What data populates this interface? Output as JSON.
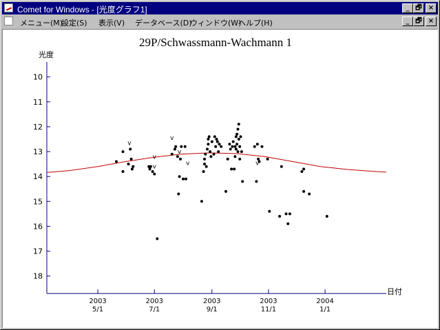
{
  "window": {
    "title": "Comet for Windows - [光度グラフ1]",
    "buttons": [
      "_",
      "🗗",
      "×"
    ],
    "mdi_buttons": [
      "_",
      "🗗",
      "×"
    ]
  },
  "menu": {
    "items": [
      "メニュー(M)",
      "設定(S)",
      "表示(V)",
      "データベース(D)",
      "ウィンドウ(W)",
      "ヘルプ(H)"
    ]
  },
  "chart_data": {
    "type": "scatter",
    "title": "29P/Schwassmann-Wachmann 1",
    "ylabel": "光度",
    "xlabel": "日付",
    "ylim": [
      9.4,
      18.7
    ],
    "y_inverted": true,
    "yticks": [
      10,
      11,
      12,
      13,
      14,
      15,
      16,
      17,
      18
    ],
    "x_domain_days": [
      -55,
      311
    ],
    "x_axis_note": "days from 2003-05-01",
    "xticks": [
      {
        "day": 0,
        "year": "2003",
        "label": "5/1"
      },
      {
        "day": 61,
        "year": "2003",
        "label": "7/1"
      },
      {
        "day": 123,
        "year": "2003",
        "label": "9/1"
      },
      {
        "day": 184,
        "year": "2003",
        "label": "11/1"
      },
      {
        "day": 245,
        "year": "2004",
        "label": "1/1"
      }
    ],
    "curve": {
      "color": "#c00000",
      "points": [
        [
          -55,
          13.84
        ],
        [
          -30,
          13.76
        ],
        [
          0,
          13.6
        ],
        [
          30,
          13.4
        ],
        [
          60,
          13.23
        ],
        [
          90,
          13.1
        ],
        [
          120,
          13.05
        ],
        [
          150,
          13.08
        ],
        [
          180,
          13.2
        ],
        [
          210,
          13.4
        ],
        [
          240,
          13.6
        ],
        [
          270,
          13.72
        ],
        [
          300,
          13.8
        ],
        [
          311,
          13.82
        ]
      ]
    },
    "points": [
      [
        20,
        13.4
      ],
      [
        27,
        13.0
      ],
      [
        27,
        13.8
      ],
      [
        33,
        13.5
      ],
      [
        35,
        12.9
      ],
      [
        36,
        13.3
      ],
      [
        37,
        13.7
      ],
      [
        38,
        13.6
      ],
      [
        55,
        13.6
      ],
      [
        56,
        13.7
      ],
      [
        57,
        13.6
      ],
      [
        59,
        13.8
      ],
      [
        61,
        13.9
      ],
      [
        64,
        16.5
      ],
      [
        80,
        13.1
      ],
      [
        83,
        12.9
      ],
      [
        84,
        12.8
      ],
      [
        86,
        13.2
      ],
      [
        87,
        14.7
      ],
      [
        88,
        14.0
      ],
      [
        89,
        13.3
      ],
      [
        90,
        12.8
      ],
      [
        92,
        14.1
      ],
      [
        94,
        12.8
      ],
      [
        95,
        14.1
      ],
      [
        112,
        15.0
      ],
      [
        114,
        13.8
      ],
      [
        115,
        13.5
      ],
      [
        115,
        13.3
      ],
      [
        116,
        13.1
      ],
      [
        117,
        13.6
      ],
      [
        118,
        12.9
      ],
      [
        119,
        12.5
      ],
      [
        119,
        12.7
      ],
      [
        120,
        12.4
      ],
      [
        121,
        13.0
      ],
      [
        122,
        13.2
      ],
      [
        123,
        12.6
      ],
      [
        125,
        13.1
      ],
      [
        126,
        12.4
      ],
      [
        127,
        12.8
      ],
      [
        128,
        12.5
      ],
      [
        129,
        12.6
      ],
      [
        130,
        13.0
      ],
      [
        131,
        12.7
      ],
      [
        133,
        12.8
      ],
      [
        138,
        14.6
      ],
      [
        140,
        13.3
      ],
      [
        142,
        12.7
      ],
      [
        143,
        12.9
      ],
      [
        144,
        13.7
      ],
      [
        145,
        12.8
      ],
      [
        146,
        12.6
      ],
      [
        147,
        13.7
      ],
      [
        148,
        13.2
      ],
      [
        148,
        12.8
      ],
      [
        149,
        12.4
      ],
      [
        149,
        12.9
      ],
      [
        150,
        12.3
      ],
      [
        150,
        12.7
      ],
      [
        151,
        12.1
      ],
      [
        151,
        13.0
      ],
      [
        152,
        11.9
      ],
      [
        152,
        12.5
      ],
      [
        153,
        12.8
      ],
      [
        153,
        13.3
      ],
      [
        154,
        12.4
      ],
      [
        155,
        13.0
      ],
      [
        156,
        14.2
      ],
      [
        169,
        12.8
      ],
      [
        171,
        14.2
      ],
      [
        172,
        12.7
      ],
      [
        173,
        13.3
      ],
      [
        174,
        13.4
      ],
      [
        177,
        12.8
      ],
      [
        183,
        13.3
      ],
      [
        185,
        15.4
      ],
      [
        196,
        15.6
      ],
      [
        198,
        13.6
      ],
      [
        203,
        15.5
      ],
      [
        205,
        15.9
      ],
      [
        207,
        15.5
      ],
      [
        220,
        13.8
      ],
      [
        222,
        14.6
      ],
      [
        222,
        13.7
      ],
      [
        228,
        14.7
      ],
      [
        247,
        15.6
      ]
    ],
    "upper_limits": [
      [
        34,
        12.65
      ],
      [
        61,
        13.2
      ],
      [
        61,
        13.6
      ],
      [
        80,
        12.45
      ],
      [
        88,
        13.0
      ],
      [
        97,
        13.45
      ],
      [
        172,
        13.45
      ]
    ]
  }
}
